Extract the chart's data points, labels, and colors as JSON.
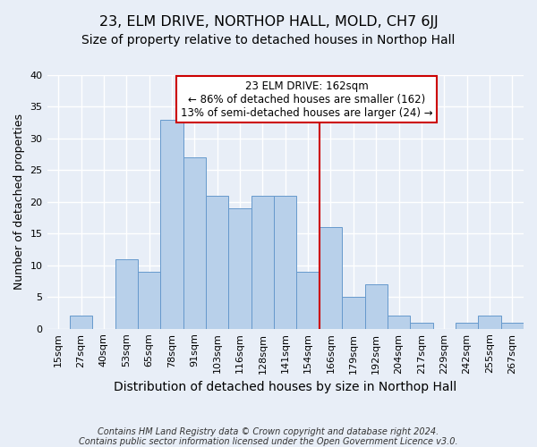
{
  "title": "23, ELM DRIVE, NORTHOP HALL, MOLD, CH7 6JJ",
  "subtitle": "Size of property relative to detached houses in Northop Hall",
  "xlabel": "Distribution of detached houses by size in Northop Hall",
  "ylabel": "Number of detached properties",
  "footnote1": "Contains HM Land Registry data © Crown copyright and database right 2024.",
  "footnote2": "Contains public sector information licensed under the Open Government Licence v3.0.",
  "bin_labels": [
    "15sqm",
    "27sqm",
    "40sqm",
    "53sqm",
    "65sqm",
    "78sqm",
    "91sqm",
    "103sqm",
    "116sqm",
    "128sqm",
    "141sqm",
    "154sqm",
    "166sqm",
    "179sqm",
    "192sqm",
    "204sqm",
    "217sqm",
    "229sqm",
    "242sqm",
    "255sqm",
    "267sqm"
  ],
  "bar_values": [
    0,
    2,
    0,
    11,
    9,
    33,
    27,
    21,
    19,
    21,
    21,
    9,
    16,
    5,
    7,
    2,
    1,
    0,
    1,
    2,
    1
  ],
  "bar_color": "#b8d0ea",
  "bar_edge_color": "#6699cc",
  "vline_color": "#cc0000",
  "vline_x_index": 12,
  "annotation_box_text": "23 ELM DRIVE: 162sqm\n← 86% of detached houses are smaller (162)\n13% of semi-detached houses are larger (24) →",
  "annotation_box_color": "#cc0000",
  "annotation_box_fill": "#ffffff",
  "ylim": [
    0,
    40
  ],
  "yticks": [
    0,
    5,
    10,
    15,
    20,
    25,
    30,
    35,
    40
  ],
  "background_color": "#e8eef7",
  "grid_color": "#ffffff",
  "title_fontsize": 11.5,
  "subtitle_fontsize": 10,
  "ylabel_fontsize": 9,
  "xlabel_fontsize": 10,
  "tick_fontsize": 8,
  "annotation_fontsize": 8.5,
  "footnote_fontsize": 7
}
